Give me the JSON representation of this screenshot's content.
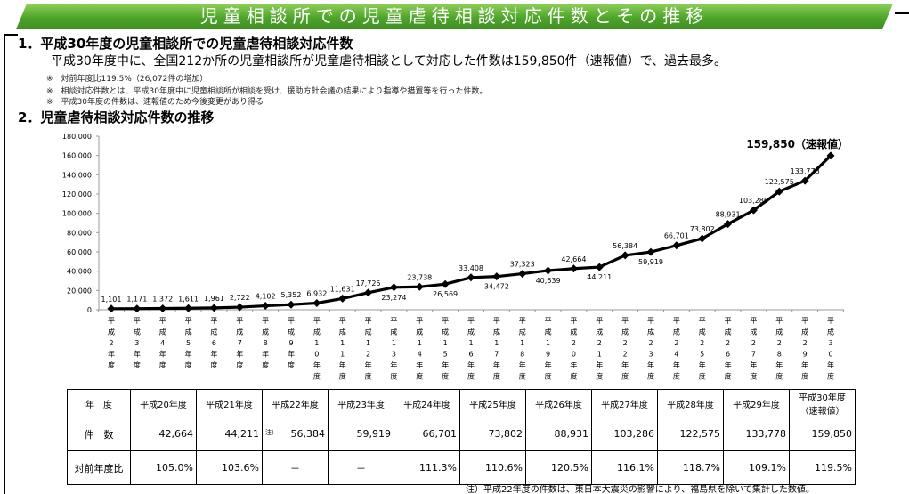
{
  "title": "児童相談所での児童虐待相談対応件数とその推移",
  "section1": {
    "heading": "1．平成30年度の児童相談所での児童虐待相談対応件数",
    "body": "平成30年度中に、全国212か所の児童相談所が児童虐待相談として対応した件数は159,850件（速報値）で、過去最多。",
    "notes": [
      "※　対前年度比119.5%（26,072件の増加）",
      "※　相談対応件数とは、平成30年度中に児童相談所が相談を受け、援助方針会議の結果により指導や措置等を行った件数。",
      "※　平成30年度の件数は、速報値のため今後変更があり得る"
    ]
  },
  "section2": {
    "heading": "2．児童虐待相談対応件数の推移"
  },
  "chart_data": {
    "type": "line",
    "x": [
      "平成2年度",
      "平成3年度",
      "平成4年度",
      "平成5年度",
      "平成6年度",
      "平成7年度",
      "平成8年度",
      "平成9年度",
      "平成10年度",
      "平成11年度",
      "平成12年度",
      "平成13年度",
      "平成14年度",
      "平成15年度",
      "平成16年度",
      "平成17年度",
      "平成18年度",
      "平成19年度",
      "平成20年度",
      "平成21年度",
      "平成22年度",
      "平成23年度",
      "平成24年度",
      "平成25年度",
      "平成26年度",
      "平成27年度",
      "平成28年度",
      "平成29年度",
      "平成30年度"
    ],
    "values": [
      1101,
      1171,
      1372,
      1611,
      1961,
      2722,
      4102,
      5352,
      6932,
      11631,
      17725,
      23274,
      23738,
      26569,
      33408,
      34472,
      37323,
      40639,
      42664,
      44211,
      56384,
      59919,
      66701,
      73802,
      88931,
      103286,
      122575,
      133778,
      159850
    ],
    "labels": [
      "1,101",
      "1,171",
      "1,372",
      "1,611",
      "1,961",
      "2,722",
      "4,102",
      "5,352",
      "6,932",
      "11,631",
      "17,725",
      "23,274",
      "23,738",
      "26,569",
      "33,408",
      "34,472",
      "37,323",
      "40,639",
      "42,664",
      "44,211",
      "56,384",
      "59,919",
      "66,701",
      "73,802",
      "88,931",
      "103,286",
      "122,575",
      "133,778",
      "159,850（速報値）"
    ],
    "yticks": [
      "0",
      "20,000",
      "40,000",
      "60,000",
      "80,000",
      "100,000",
      "120,000",
      "140,000",
      "160,000",
      "180,000"
    ],
    "ylim": [
      0,
      180000
    ],
    "grid": false,
    "line_color": "#000000"
  },
  "table": {
    "header": [
      "年　度",
      "平成20年度",
      "平成21年度",
      "平成22年度",
      "平成23年度",
      "平成24年度",
      "平成25年度",
      "平成26年度",
      "平成27年度",
      "平成28年度",
      "平成29年度",
      "平成30年度",
      "（速報値）"
    ],
    "row_counts_label": "件　数",
    "counts": [
      "42,664",
      "44,211",
      "56,384",
      "59,919",
      "66,701",
      "73,802",
      "88,931",
      "103,286",
      "122,575",
      "133,778",
      "159,850"
    ],
    "note_mark": "注）",
    "row_ratio_label": "対前年度比",
    "ratios": [
      "105.0%",
      "103.6%",
      "－",
      "－",
      "111.3%",
      "110.6%",
      "120.5%",
      "116.1%",
      "118.7%",
      "109.1%",
      "119.5%"
    ]
  },
  "footnote": "注）平成22年度の件数は、東日本大震災の影響により、福島県を除いて集計した数値。"
}
